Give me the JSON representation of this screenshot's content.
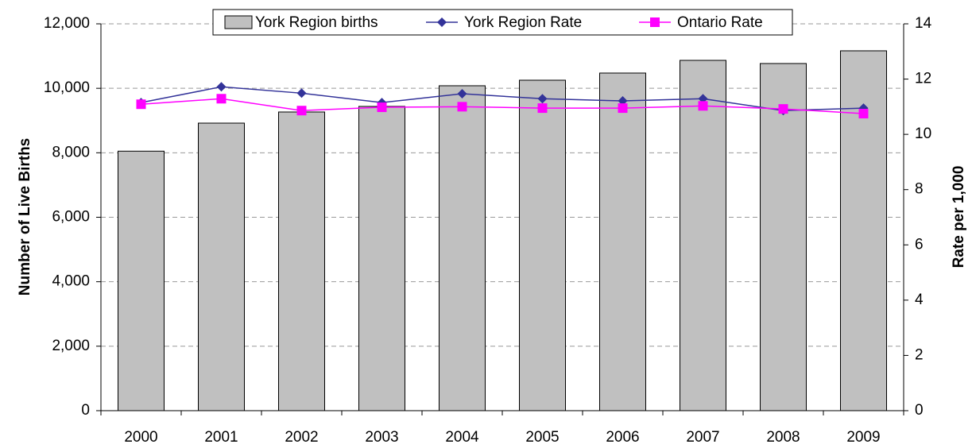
{
  "chart_data": {
    "type": "bar_line",
    "y_label": "Number of Live Births",
    "y2_label": "Rate per 1,000",
    "categories": [
      "2000",
      "2001",
      "2002",
      "2003",
      "2004",
      "2005",
      "2006",
      "2007",
      "2008",
      "2009"
    ],
    "series": [
      {
        "name": "York Region births",
        "type": "bar",
        "color": "#c0c0c0",
        "values": [
          8050,
          8920,
          9265,
          9438,
          10079,
          10251,
          10473,
          10867,
          10769,
          11163
        ]
      },
      {
        "name": "York Region Rate",
        "type": "line",
        "marker": "diamond",
        "axis": "y2",
        "color": "#333399",
        "values": [
          11.15,
          11.72,
          11.49,
          11.15,
          11.47,
          11.29,
          11.21,
          11.29,
          10.86,
          10.95
        ]
      },
      {
        "name": "Ontario Rate",
        "type": "line",
        "marker": "square",
        "axis": "y2",
        "color": "#ff00ff",
        "values": [
          11.09,
          11.29,
          10.86,
          10.98,
          11.0,
          10.95,
          10.95,
          11.03,
          10.92,
          10.75
        ]
      }
    ],
    "ylim": [
      0,
      12000
    ],
    "yticks": [
      0,
      {
        "value": 2000,
        "label": "2,000"
      },
      {
        "value": 4000,
        "label": "4,000"
      },
      {
        "value": 6000,
        "label": "6,000"
      },
      {
        "value": 8000,
        "label": "8,000"
      },
      {
        "value": 10000,
        "label": "10,000"
      },
      {
        "value": 12000,
        "label": "12,000"
      }
    ],
    "y2lim": [
      0,
      14
    ],
    "y2ticks": [
      0,
      2,
      4,
      6,
      8,
      10,
      12,
      14
    ],
    "grid": true,
    "legend": "top"
  }
}
